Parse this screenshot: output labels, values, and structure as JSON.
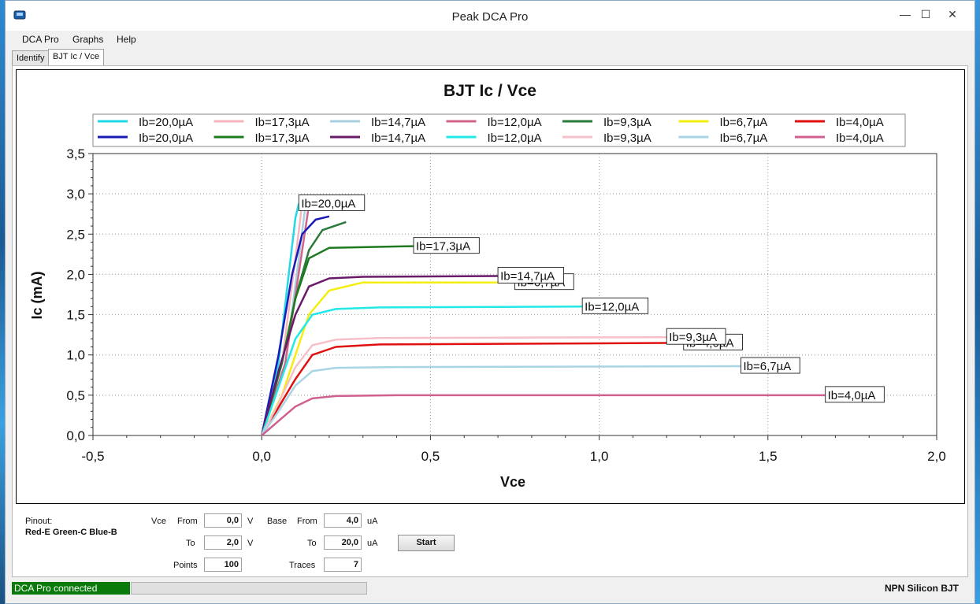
{
  "window": {
    "title": "Peak DCA Pro"
  },
  "window_buttons": {
    "minimize": "—",
    "maximize": "☐",
    "close": "✕"
  },
  "menu": [
    "DCA Pro",
    "Graphs",
    "Help"
  ],
  "tabs": [
    {
      "label": "Identify",
      "active": false
    },
    {
      "label": "BJT Ic / Vce",
      "active": true
    }
  ],
  "chart_data": {
    "type": "line",
    "title": "BJT Ic / Vce",
    "xlabel": "Vce",
    "ylabel": "Ic (mA)",
    "xlim": [
      -0.5,
      2.0
    ],
    "ylim": [
      0.0,
      3.5
    ],
    "xticks": [
      "-0,5",
      "0,0",
      "0,5",
      "1,0",
      "1,5",
      "2,0"
    ],
    "yticks": [
      "0,0",
      "0,5",
      "1,0",
      "1,5",
      "2,0",
      "2,5",
      "3,0",
      "3,5"
    ],
    "grid": true,
    "legend_position": "top",
    "series": [
      {
        "name": "Ib=20,0µA",
        "color": "#22d8e6",
        "x": [
          0,
          0.05,
          0.08,
          0.1,
          0.11
        ],
        "y": [
          0,
          0.9,
          2.0,
          2.7,
          2.88
        ],
        "end_label": "Ib=20,0µA"
      },
      {
        "name": "Ib=17,3µA",
        "color": "#f6b6c0",
        "x": [
          0,
          0.06,
          0.1,
          0.12
        ],
        "y": [
          0,
          0.9,
          2.2,
          2.88
        ],
        "end_label": ""
      },
      {
        "name": "Ib=14,7µA",
        "color": "#a8d0e0",
        "x": [
          0,
          0.07,
          0.11,
          0.13
        ],
        "y": [
          0,
          0.9,
          2.2,
          2.87
        ],
        "end_label": ""
      },
      {
        "name": "Ib=12,0µA",
        "color": "#d0648a",
        "x": [
          0,
          0.07,
          0.12,
          0.14
        ],
        "y": [
          0,
          0.9,
          2.3,
          2.86
        ],
        "end_label": ""
      },
      {
        "name": "Ib=9,3µA",
        "color": "#2a7a3a",
        "x": [
          0,
          0.06,
          0.1,
          0.14,
          0.18,
          0.25
        ],
        "y": [
          0,
          0.9,
          1.7,
          2.3,
          2.55,
          2.65
        ],
        "end_label": ""
      },
      {
        "name": "Ib=6,7µA",
        "color": "#f4ee10",
        "x": [
          0,
          0.06,
          0.1,
          0.14,
          0.2,
          0.3,
          0.75
        ],
        "y": [
          0,
          0.5,
          1.0,
          1.5,
          1.8,
          1.9,
          1.9
        ],
        "end_label": "Ib=6,7µA"
      },
      {
        "name": "Ib=4,0µA",
        "color": "#e01010",
        "x": [
          0,
          0.05,
          0.1,
          0.15,
          0.22,
          0.35,
          1.25
        ],
        "y": [
          0,
          0.35,
          0.7,
          1.0,
          1.1,
          1.13,
          1.15
        ],
        "end_label": "Ib=4,0µA"
      },
      {
        "name": "Ib=20,0µA",
        "color": "#1a1ab8",
        "x": [
          0,
          0.05,
          0.09,
          0.12,
          0.16,
          0.2
        ],
        "y": [
          0,
          1.0,
          2.0,
          2.5,
          2.68,
          2.72
        ],
        "end_label": ""
      },
      {
        "name": "Ib=17,3µA",
        "color": "#1e7a1e",
        "x": [
          0,
          0.06,
          0.1,
          0.14,
          0.2,
          0.45
        ],
        "y": [
          0,
          0.9,
          1.7,
          2.2,
          2.33,
          2.35
        ],
        "end_label": "Ib=17,3µA"
      },
      {
        "name": "Ib=14,7µA",
        "color": "#6a1a6a",
        "x": [
          0,
          0.05,
          0.1,
          0.14,
          0.2,
          0.3,
          0.7
        ],
        "y": [
          0,
          0.8,
          1.5,
          1.85,
          1.95,
          1.97,
          1.98
        ],
        "end_label": "Ib=14,7µA"
      },
      {
        "name": "Ib=12,0µA",
        "color": "#22e8e8",
        "x": [
          0,
          0.05,
          0.1,
          0.15,
          0.22,
          0.35,
          0.95
        ],
        "y": [
          0,
          0.6,
          1.2,
          1.5,
          1.57,
          1.59,
          1.6
        ],
        "end_label": "Ib=12,0µA"
      },
      {
        "name": "Ib=9,3µA",
        "color": "#f6c0c8",
        "x": [
          0,
          0.05,
          0.1,
          0.15,
          0.22,
          0.35,
          1.2
        ],
        "y": [
          0,
          0.4,
          0.85,
          1.12,
          1.19,
          1.21,
          1.22
        ],
        "end_label": "Ib=9,3µA"
      },
      {
        "name": "Ib=6,7µA",
        "color": "#a8d4e4",
        "x": [
          0,
          0.05,
          0.1,
          0.15,
          0.22,
          0.4,
          1.42
        ],
        "y": [
          0,
          0.3,
          0.62,
          0.8,
          0.84,
          0.85,
          0.86
        ],
        "end_label": "Ib=6,7µA"
      },
      {
        "name": "Ib=4,0µA",
        "color": "#d06090",
        "x": [
          0,
          0.05,
          0.1,
          0.15,
          0.22,
          0.4,
          1.67
        ],
        "y": [
          0,
          0.18,
          0.36,
          0.46,
          0.49,
          0.5,
          0.5
        ],
        "end_label": "Ib=4,0µA"
      }
    ]
  },
  "controls": {
    "pinout_label": "Pinout:",
    "pinout_value": "Red-E Green-C Blue-B",
    "vce_label": "Vce",
    "from_label": "From",
    "to_label": "To",
    "points_label": "Points",
    "vce_from": "0,0",
    "vce_to": "2,0",
    "vce_unit": "V",
    "points": "100",
    "base_label": "Base",
    "base_from": "4,0",
    "base_to": "20,0",
    "base_unit": "uA",
    "traces_label": "Traces",
    "traces": "7",
    "start_label": "Start"
  },
  "status": {
    "connection": "DCA Pro connected",
    "device": "NPN Silicon BJT"
  }
}
